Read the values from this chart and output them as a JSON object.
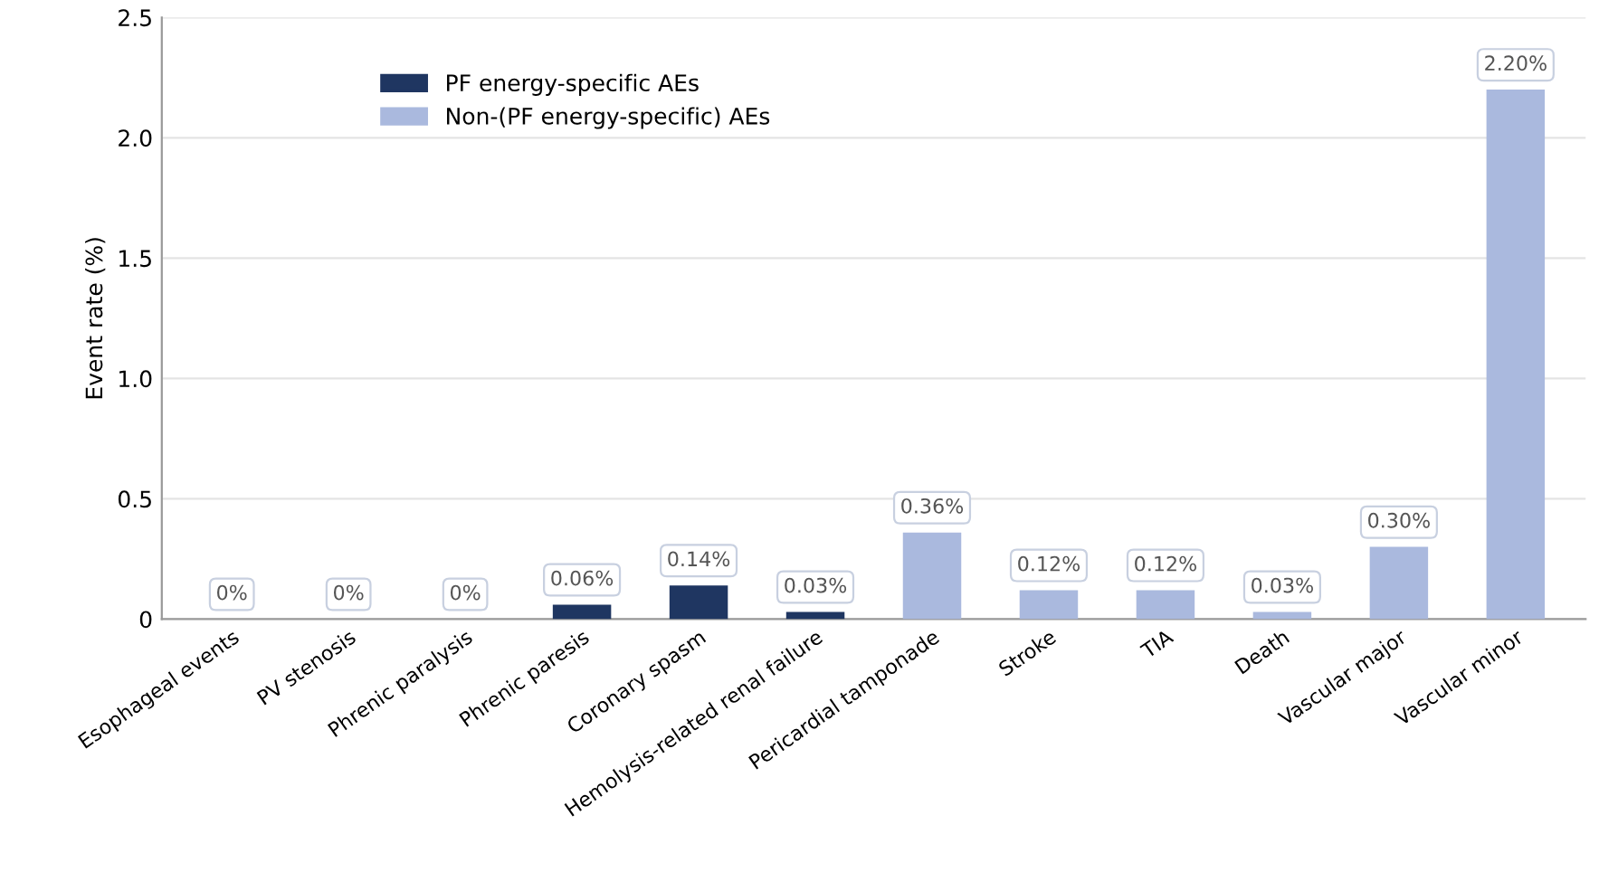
{
  "chart_data": {
    "type": "bar",
    "ylabel": "Event rate (%)",
    "categories": [
      "Esophageal events",
      "PV stenosis",
      "Phrenic paralysis",
      "Phrenic paresis",
      "Coronary spasm",
      "Hemolysis-related renal failure",
      "Pericardial tamponade",
      "Stroke",
      "TIA",
      "Death",
      "Vascular major",
      "Vascular minor"
    ],
    "series": [
      {
        "name": "PF energy-specific AEs",
        "color": "#1f3661",
        "values": [
          0,
          0,
          0,
          0.06,
          0.14,
          0.03,
          null,
          null,
          null,
          null,
          null,
          null
        ],
        "value_labels": [
          "0%",
          "0%",
          "0%",
          "0.06%",
          "0.14%",
          "0.03%",
          null,
          null,
          null,
          null,
          null,
          null
        ]
      },
      {
        "name": "Non-(PF energy-specific) AEs",
        "color": "#aab9de",
        "values": [
          null,
          null,
          null,
          null,
          null,
          null,
          0.36,
          0.12,
          0.12,
          0.03,
          0.3,
          2.2
        ],
        "value_labels": [
          null,
          null,
          null,
          null,
          null,
          null,
          "0.36%",
          "0.12%",
          "0.12%",
          "0.03%",
          "0.30%",
          "2.20%"
        ]
      }
    ],
    "ylim": [
      0,
      2.5
    ],
    "yticks": [
      0,
      0.5,
      {
        "value": 1.0,
        "label": "1.0"
      },
      1.5,
      {
        "value": 2.0,
        "label": "2.0"
      },
      2.5
    ],
    "grid": "y",
    "legend": "top left"
  }
}
